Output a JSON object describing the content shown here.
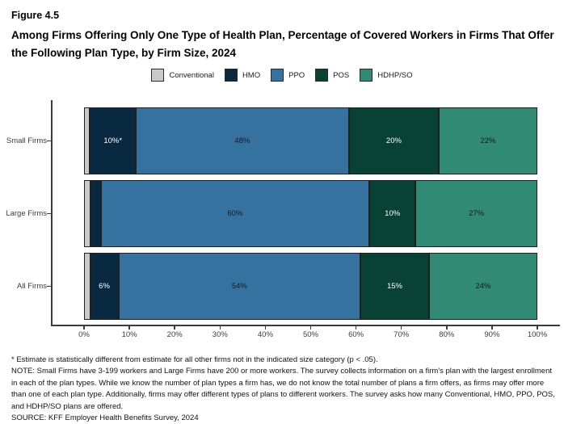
{
  "chart_data": {
    "type": "bar",
    "orientation": "horizontal-stacked",
    "title": "Figure 4.5",
    "subtitle": "Among Firms Offering Only One Type of Health Plan, Percentage of Covered Workers in Firms That Offer the Following Plan Type, by Firm Size, 2024",
    "categories": [
      "Small Firms",
      "Large Firms",
      "All Firms"
    ],
    "series": [
      {
        "name": "Conventional",
        "color": "#c9c9c9",
        "label_color": "#1a1a1a",
        "values": [
          1,
          1,
          1
        ],
        "labels": [
          "",
          "",
          ""
        ]
      },
      {
        "name": "HMO",
        "color": "#08293f",
        "label_color": "#ffffff",
        "values": [
          10,
          2,
          6
        ],
        "labels": [
          "10%*",
          "",
          "6%"
        ]
      },
      {
        "name": "PPO",
        "color": "#35729f",
        "label_color": "#1a1a1a",
        "values": [
          48,
          60,
          54
        ],
        "labels": [
          "48%",
          "60%",
          "54%"
        ]
      },
      {
        "name": "POS",
        "color": "#074234",
        "label_color": "#ffffff",
        "values": [
          20,
          10,
          15
        ],
        "labels": [
          "20%",
          "10%",
          "15%"
        ]
      },
      {
        "name": "HDHP/SO",
        "color": "#308a74",
        "label_color": "#1a1a1a",
        "values": [
          22,
          27,
          24
        ],
        "labels": [
          "22%",
          "27%",
          "24%"
        ]
      }
    ],
    "x_ticks": [
      "0%",
      "10%",
      "20%",
      "30%",
      "40%",
      "50%",
      "60%",
      "70%",
      "80%",
      "90%",
      "100%"
    ],
    "xlim": [
      0,
      100
    ],
    "legend_position": "top",
    "grid": false
  },
  "footnotes": {
    "asterisk": "* Estimate is statistically different from estimate for all other firms not in the indicated size category (p < .05).",
    "note": "NOTE: Small Firms have 3-199 workers and Large Firms have 200 or more workers. The survey collects information on a firm's plan with the largest enrollment in each of the plan types. While we know the number of plan types a firm has, we do not know the total number of plans a firm offers, as firms may offer more than one of each plan type. Additionally, firms may offer different types of plans to different workers. The survey asks how many Conventional, HMO, PPO, POS, and HDHP/SO plans are offered.",
    "source": "SOURCE: KFF Employer Health Benefits Survey, 2024"
  }
}
